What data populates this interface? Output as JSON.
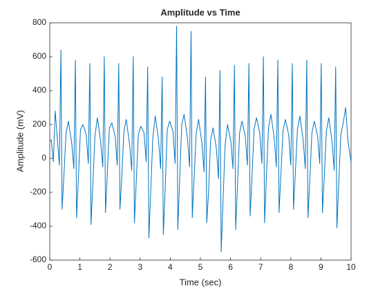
{
  "chart_data": {
    "type": "line",
    "title": "Amplitude vs Time",
    "x_label": "Time (sec)",
    "y_label": "Amplitude (mV)",
    "x": [
      0,
      0.05,
      0.12,
      0.18,
      0.25,
      0.32,
      0.37,
      0.41,
      0.47,
      0.54,
      0.62,
      0.73,
      0.8,
      0.85,
      0.89,
      0.95,
      1.02,
      1.1,
      1.21,
      1.28,
      1.33,
      1.37,
      1.43,
      1.5,
      1.58,
      1.69,
      1.76,
      1.81,
      1.85,
      1.91,
      1.98,
      2.06,
      2.17,
      2.24,
      2.29,
      2.33,
      2.39,
      2.46,
      2.54,
      2.65,
      2.72,
      2.77,
      2.81,
      2.87,
      2.94,
      3.02,
      3.13,
      3.2,
      3.25,
      3.29,
      3.35,
      3.42,
      3.5,
      3.61,
      3.68,
      3.73,
      3.77,
      3.83,
      3.9,
      3.98,
      4.09,
      4.16,
      4.21,
      4.25,
      4.31,
      4.38,
      4.46,
      4.57,
      4.64,
      4.69,
      4.73,
      4.79,
      4.86,
      4.94,
      5.05,
      5.12,
      5.17,
      5.21,
      5.27,
      5.34,
      5.42,
      5.53,
      5.6,
      5.65,
      5.69,
      5.75,
      5.82,
      5.9,
      6.01,
      6.08,
      6.13,
      6.17,
      6.23,
      6.3,
      6.38,
      6.49,
      6.56,
      6.61,
      6.65,
      6.71,
      6.78,
      6.86,
      6.97,
      7.04,
      7.09,
      7.13,
      7.19,
      7.26,
      7.34,
      7.45,
      7.52,
      7.57,
      7.61,
      7.67,
      7.74,
      7.82,
      7.93,
      8.0,
      8.05,
      8.09,
      8.15,
      8.22,
      8.3,
      8.41,
      8.48,
      8.53,
      8.57,
      8.63,
      8.7,
      8.78,
      8.89,
      8.96,
      9.01,
      9.05,
      9.11,
      9.18,
      9.26,
      9.37,
      9.44,
      9.49,
      9.53,
      9.59,
      9.66,
      9.74,
      9.82,
      9.9,
      10
    ],
    "series": [
      {
        "color": "#0072bd",
        "values": [
          100,
          110,
          -20,
          280,
          120,
          -40,
          640,
          -300,
          -100,
          150,
          220,
          90,
          -60,
          580,
          -350,
          -120,
          170,
          200,
          140,
          -30,
          560,
          -390,
          -150,
          130,
          240,
          100,
          -50,
          600,
          -320,
          -90,
          180,
          210,
          130,
          -40,
          560,
          -300,
          -110,
          160,
          230,
          80,
          -70,
          600,
          -380,
          -140,
          140,
          190,
          150,
          -20,
          540,
          -470,
          -200,
          120,
          250,
          110,
          -60,
          480,
          -450,
          -180,
          170,
          220,
          160,
          -30,
          780,
          -420,
          -130,
          200,
          260,
          120,
          -50,
          750,
          -350,
          -120,
          150,
          230,
          90,
          -80,
          480,
          -380,
          -200,
          110,
          180,
          60,
          -120,
          520,
          -550,
          -250,
          80,
          200,
          100,
          -60,
          550,
          -420,
          -160,
          150,
          220,
          130,
          -40,
          560,
          -340,
          -120,
          170,
          240,
          150,
          -30,
          600,
          -380,
          -110,
          180,
          260,
          120,
          -50,
          580,
          -320,
          -100,
          160,
          230,
          140,
          -40,
          560,
          -300,
          -90,
          170,
          250,
          110,
          -60,
          580,
          -350,
          -130,
          150,
          220,
          130,
          -30,
          560,
          -320,
          -110,
          160,
          240,
          100,
          -70,
          540,
          -410,
          -150,
          140,
          210,
          300,
          100,
          -20
        ]
      }
    ],
    "xlim": [
      0,
      10
    ],
    "xticks": [
      0,
      1,
      2,
      3,
      4,
      5,
      6,
      7,
      8,
      9,
      10
    ],
    "ylim": [
      -600,
      800
    ],
    "yticks": [
      -600,
      -400,
      -200,
      0,
      200,
      400,
      600,
      800
    ]
  }
}
